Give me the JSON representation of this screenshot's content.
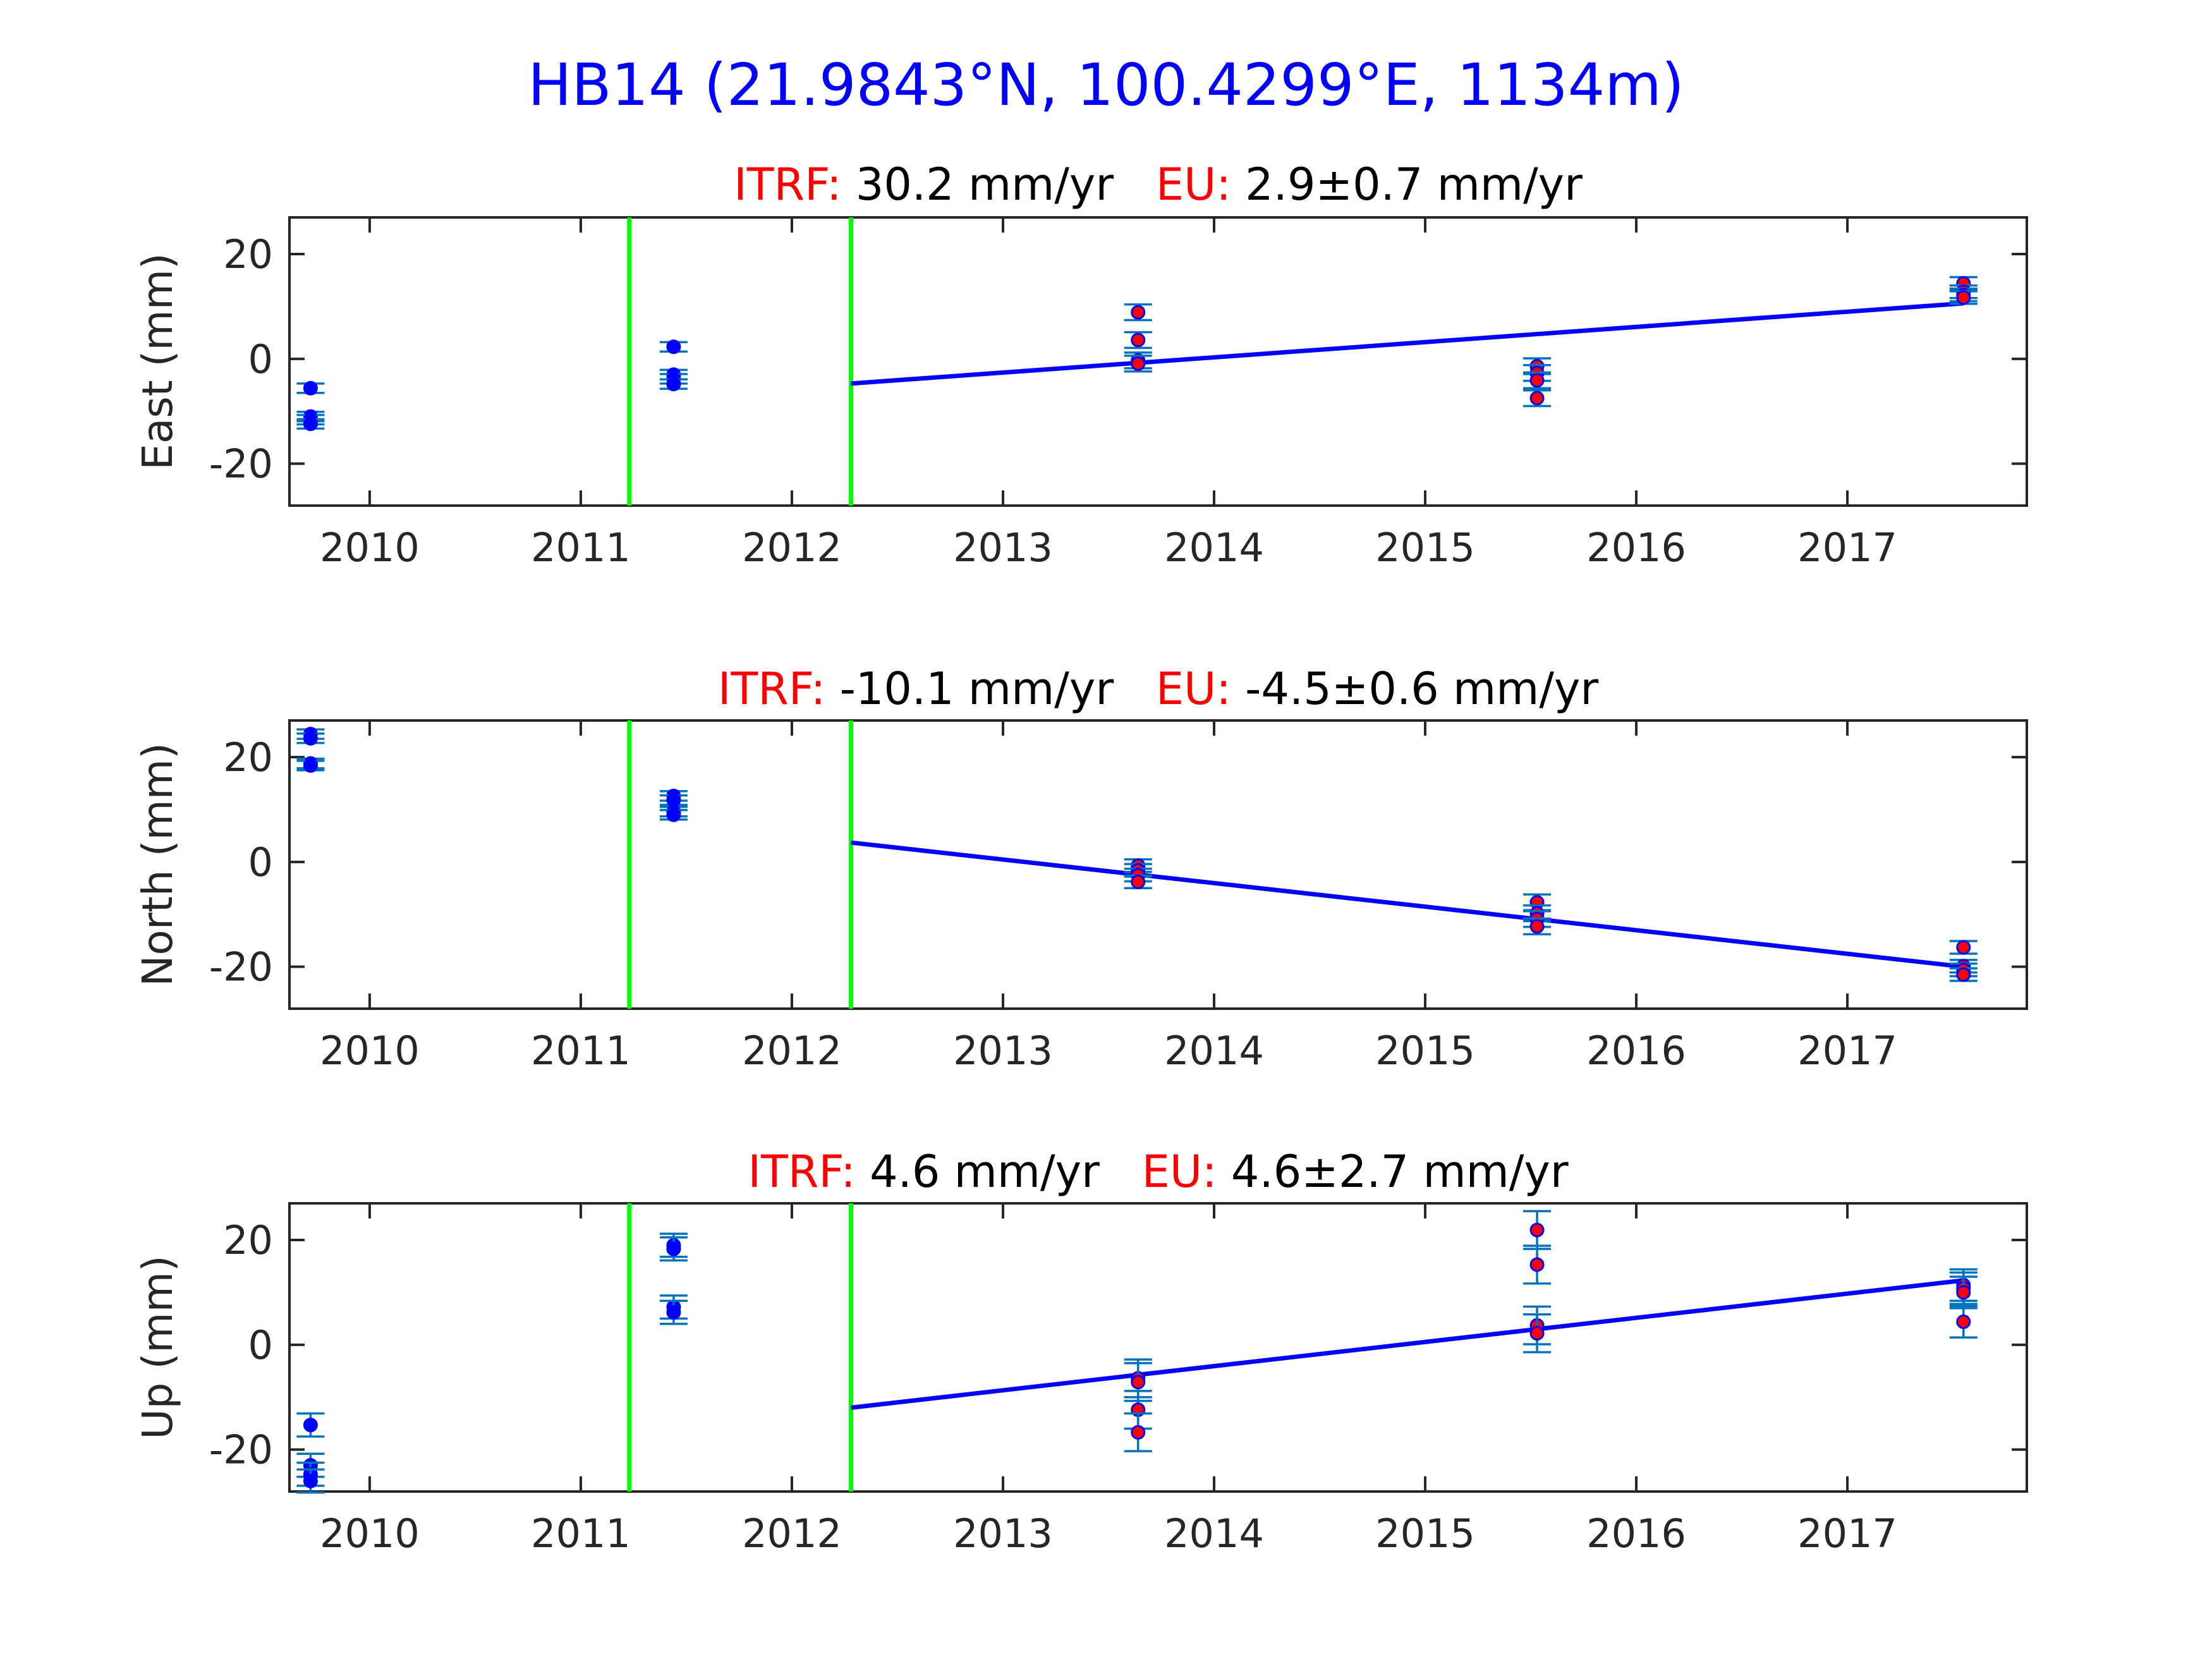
{
  "title": "HB14 (21.9843°N, 100.4299°E, 1134m)",
  "colors": {
    "title": "#0000ff",
    "itrf_label": "#ff0000",
    "eu_label": "#ff0000",
    "fit_line": "#0000ff",
    "break_lines": "#00ff00",
    "errorbar": "#0072bd",
    "point_early": "#0000ff",
    "point_fit": "#ff0000",
    "axes": "#262626"
  },
  "chart_data": [
    {
      "type": "scatter",
      "component": "east",
      "ylabel": "East (mm)",
      "itrf_label": "ITRF:",
      "itrf_value": "30.2 mm/yr",
      "eu_label": "EU:",
      "eu_value": "2.9±0.7 mm/yr",
      "xlim": [
        2009.62,
        2017.85
      ],
      "ylim": [
        -28,
        27
      ],
      "xticks": [
        "2010",
        "2011",
        "2012",
        "2013",
        "2014",
        "2015",
        "2016",
        "2017"
      ],
      "yticks": [
        "20",
        "0",
        "-20"
      ],
      "ytick_values": [
        20,
        0,
        -20
      ],
      "break_lines": [
        2011.23,
        2012.28
      ],
      "fit_line": {
        "x": [
          2012.28,
          2017.55
        ],
        "y": [
          -4.7,
          10.6
        ]
      },
      "points": [
        {
          "x": 2009.72,
          "y": -5.6,
          "err": 0.9,
          "group": "early"
        },
        {
          "x": 2009.72,
          "y": -11.0,
          "err": 0.9,
          "group": "early"
        },
        {
          "x": 2009.72,
          "y": -11.6,
          "err": 0.9,
          "group": "early"
        },
        {
          "x": 2009.72,
          "y": -12.4,
          "err": 0.9,
          "group": "early"
        },
        {
          "x": 2011.44,
          "y": 2.3,
          "err": 0.9,
          "group": "early"
        },
        {
          "x": 2011.44,
          "y": -3.0,
          "err": 0.9,
          "group": "early"
        },
        {
          "x": 2011.44,
          "y": -3.8,
          "err": 0.9,
          "group": "early"
        },
        {
          "x": 2011.44,
          "y": -4.8,
          "err": 0.9,
          "group": "early"
        },
        {
          "x": 2013.64,
          "y": 8.9,
          "err": 1.5,
          "group": "fit"
        },
        {
          "x": 2013.64,
          "y": 3.6,
          "err": 1.5,
          "group": "fit"
        },
        {
          "x": 2013.64,
          "y": -0.3,
          "err": 1.5,
          "group": "fit"
        },
        {
          "x": 2013.64,
          "y": -0.9,
          "err": 1.5,
          "group": "fit"
        },
        {
          "x": 2015.53,
          "y": -1.4,
          "err": 1.5,
          "group": "fit"
        },
        {
          "x": 2015.53,
          "y": -2.7,
          "err": 1.5,
          "group": "fit"
        },
        {
          "x": 2015.53,
          "y": -4.1,
          "err": 1.5,
          "group": "fit"
        },
        {
          "x": 2015.53,
          "y": -7.5,
          "err": 1.5,
          "group": "fit"
        },
        {
          "x": 2017.55,
          "y": 14.4,
          "err": 1.2,
          "group": "fit"
        },
        {
          "x": 2017.55,
          "y": 12.8,
          "err": 1.2,
          "group": "fit"
        },
        {
          "x": 2017.55,
          "y": 12.2,
          "err": 1.2,
          "group": "fit"
        },
        {
          "x": 2017.55,
          "y": 11.7,
          "err": 1.2,
          "group": "fit"
        }
      ]
    },
    {
      "type": "scatter",
      "component": "north",
      "ylabel": "North (mm)",
      "itrf_label": "ITRF:",
      "itrf_value": "-10.1 mm/yr",
      "eu_label": "EU:",
      "eu_value": "-4.5±0.6 mm/yr",
      "xlim": [
        2009.62,
        2017.85
      ],
      "ylim": [
        -28,
        27
      ],
      "xticks": [
        "2010",
        "2011",
        "2012",
        "2013",
        "2014",
        "2015",
        "2016",
        "2017"
      ],
      "yticks": [
        "20",
        "0",
        "-20"
      ],
      "ytick_values": [
        20,
        0,
        -20
      ],
      "break_lines": [
        2011.23,
        2012.28
      ],
      "fit_line": {
        "x": [
          2012.28,
          2017.55
        ],
        "y": [
          3.7,
          -20.0
        ]
      },
      "points": [
        {
          "x": 2009.72,
          "y": 24.4,
          "err": 0.9,
          "group": "early"
        },
        {
          "x": 2009.72,
          "y": 23.6,
          "err": 0.9,
          "group": "early"
        },
        {
          "x": 2009.72,
          "y": 18.8,
          "err": 0.9,
          "group": "early"
        },
        {
          "x": 2009.72,
          "y": 18.4,
          "err": 0.9,
          "group": "early"
        },
        {
          "x": 2011.44,
          "y": 12.6,
          "err": 0.9,
          "group": "early"
        },
        {
          "x": 2011.44,
          "y": 11.8,
          "err": 0.9,
          "group": "early"
        },
        {
          "x": 2011.44,
          "y": 9.6,
          "err": 0.9,
          "group": "early"
        },
        {
          "x": 2011.44,
          "y": 9.0,
          "err": 0.9,
          "group": "early"
        },
        {
          "x": 2013.64,
          "y": -0.7,
          "err": 1.2,
          "group": "fit"
        },
        {
          "x": 2013.64,
          "y": -1.6,
          "err": 1.2,
          "group": "fit"
        },
        {
          "x": 2013.64,
          "y": -2.5,
          "err": 1.2,
          "group": "fit"
        },
        {
          "x": 2013.64,
          "y": -3.8,
          "err": 1.2,
          "group": "fit"
        },
        {
          "x": 2015.53,
          "y": -7.7,
          "err": 1.5,
          "group": "fit"
        },
        {
          "x": 2015.53,
          "y": -9.8,
          "err": 1.5,
          "group": "fit"
        },
        {
          "x": 2015.53,
          "y": -10.9,
          "err": 1.5,
          "group": "fit"
        },
        {
          "x": 2015.53,
          "y": -12.3,
          "err": 1.5,
          "group": "fit"
        },
        {
          "x": 2017.55,
          "y": -16.3,
          "err": 1.2,
          "group": "fit"
        },
        {
          "x": 2017.55,
          "y": -19.9,
          "err": 1.2,
          "group": "fit"
        },
        {
          "x": 2017.55,
          "y": -20.6,
          "err": 1.2,
          "group": "fit"
        },
        {
          "x": 2017.55,
          "y": -21.5,
          "err": 1.2,
          "group": "fit"
        }
      ]
    },
    {
      "type": "scatter",
      "component": "up",
      "ylabel": "Up (mm)",
      "itrf_label": "ITRF:",
      "itrf_value": "4.6 mm/yr",
      "eu_label": "EU:",
      "eu_value": "4.6±2.7 mm/yr",
      "xlim": [
        2009.62,
        2017.85
      ],
      "ylim": [
        -28,
        27
      ],
      "xticks": [
        "2010",
        "2011",
        "2012",
        "2013",
        "2014",
        "2015",
        "2016",
        "2017"
      ],
      "yticks": [
        "20",
        "0",
        "-20"
      ],
      "ytick_values": [
        20,
        0,
        -20
      ],
      "break_lines": [
        2011.23,
        2012.28
      ],
      "fit_line": {
        "x": [
          2012.28,
          2017.55
        ],
        "y": [
          -12.0,
          12.3
        ]
      },
      "points": [
        {
          "x": 2009.72,
          "y": -15.3,
          "err": 2.2,
          "group": "early"
        },
        {
          "x": 2009.72,
          "y": -23.0,
          "err": 2.2,
          "group": "early"
        },
        {
          "x": 2009.72,
          "y": -24.7,
          "err": 2.2,
          "group": "early"
        },
        {
          "x": 2009.72,
          "y": -26.0,
          "err": 2.2,
          "group": "early"
        },
        {
          "x": 2011.44,
          "y": 19.0,
          "err": 2.2,
          "group": "early"
        },
        {
          "x": 2011.44,
          "y": 18.3,
          "err": 2.2,
          "group": "early"
        },
        {
          "x": 2011.44,
          "y": 7.2,
          "err": 2.2,
          "group": "early"
        },
        {
          "x": 2011.44,
          "y": 6.2,
          "err": 2.2,
          "group": "early"
        },
        {
          "x": 2013.64,
          "y": -6.4,
          "err": 3.6,
          "group": "fit"
        },
        {
          "x": 2013.64,
          "y": -7.1,
          "err": 3.6,
          "group": "fit"
        },
        {
          "x": 2013.64,
          "y": -12.4,
          "err": 3.6,
          "group": "fit"
        },
        {
          "x": 2013.64,
          "y": -16.7,
          "err": 3.6,
          "group": "fit"
        },
        {
          "x": 2015.53,
          "y": 21.9,
          "err": 3.6,
          "group": "fit"
        },
        {
          "x": 2015.53,
          "y": 15.3,
          "err": 3.6,
          "group": "fit"
        },
        {
          "x": 2015.53,
          "y": 3.7,
          "err": 3.6,
          "group": "fit"
        },
        {
          "x": 2015.53,
          "y": 2.2,
          "err": 3.6,
          "group": "fit"
        },
        {
          "x": 2017.55,
          "y": 11.4,
          "err": 3.0,
          "group": "fit"
        },
        {
          "x": 2017.55,
          "y": 10.8,
          "err": 3.0,
          "group": "fit"
        },
        {
          "x": 2017.55,
          "y": 10.0,
          "err": 3.0,
          "group": "fit"
        },
        {
          "x": 2017.55,
          "y": 4.4,
          "err": 3.0,
          "group": "fit"
        }
      ]
    }
  ]
}
